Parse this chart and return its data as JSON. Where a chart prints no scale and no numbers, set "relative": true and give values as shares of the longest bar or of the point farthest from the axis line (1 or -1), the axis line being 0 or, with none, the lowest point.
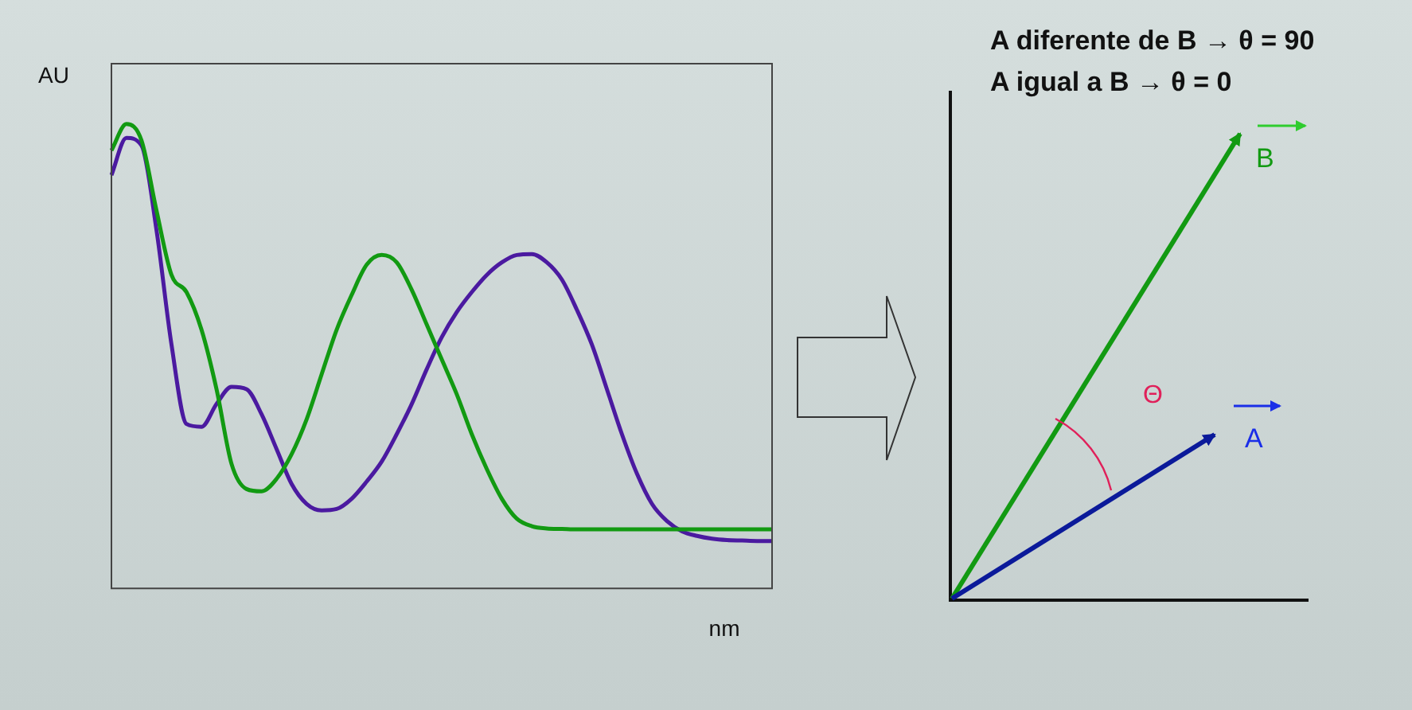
{
  "chart_data": [
    {
      "type": "line",
      "relative": true,
      "xlabel": "nm",
      "ylabel": "AU",
      "legend": false,
      "grid": false,
      "marker": "none",
      "line_style": "solid",
      "categories": [
        null,
        null,
        null,
        null,
        null,
        null,
        null,
        null,
        null,
        null,
        null,
        null,
        null,
        null,
        null,
        null,
        null,
        null,
        null,
        null,
        null,
        null,
        null,
        null,
        null,
        null,
        null,
        null,
        null,
        null,
        null,
        null,
        null,
        null,
        null,
        null,
        null,
        null,
        null,
        null,
        null,
        null,
        null,
        null,
        null
      ],
      "series": [
        {
          "color": "#129a12",
          "values": [
            0.943,
            1,
            0.965,
            0.814,
            0.675,
            0.638,
            0.557,
            0.429,
            0.268,
            0.214,
            0.209,
            0.236,
            0.289,
            0.364,
            0.461,
            0.557,
            0.632,
            0.697,
            0.718,
            0.702,
            0.643,
            0.568,
            0.493,
            0.418,
            0.332,
            0.257,
            0.193,
            0.15,
            0.134,
            0.129,
            0.128,
            0.127,
            0.127,
            0.127,
            0.127,
            0.127,
            0.127,
            0.127,
            0.127,
            0.127,
            0.127,
            0.127,
            0.127,
            0.127,
            0.127
          ]
        },
        {
          "color": "#4b1aa0",
          "values": [
            0.89,
            0.97,
            0.954,
            0.772,
            0.525,
            0.354,
            0.348,
            0.397,
            0.434,
            0.429,
            0.375,
            0.3,
            0.225,
            0.182,
            0.168,
            0.171,
            0.193,
            0.23,
            0.273,
            0.332,
            0.397,
            0.472,
            0.541,
            0.595,
            0.638,
            0.675,
            0.702,
            0.718,
            0.72,
            0.702,
            0.665,
            0.6,
            0.525,
            0.429,
            0.332,
            0.247,
            0.182,
            0.145,
            0.123,
            0.113,
            0.107,
            0.104,
            0.103,
            0.102,
            0.102
          ]
        }
      ]
    },
    {
      "type": "other",
      "annotations": [
        "A diferente de B → θ = 90",
        "A igual a B → θ = 0",
        "B",
        "A",
        "Θ"
      ]
    }
  ]
}
